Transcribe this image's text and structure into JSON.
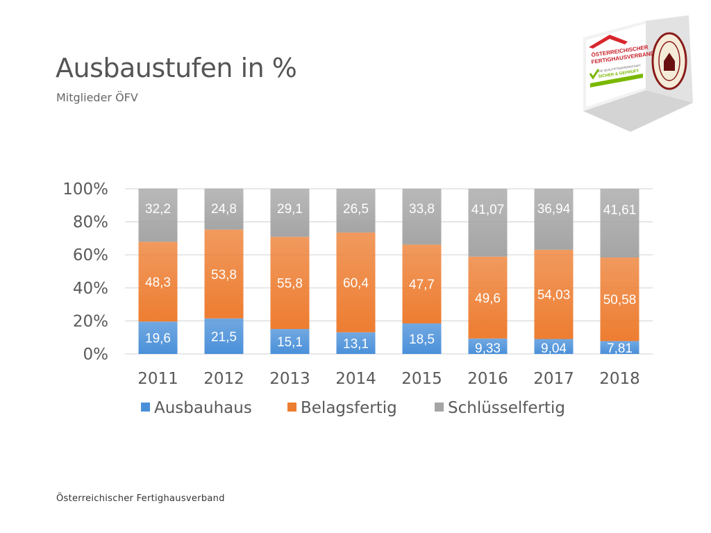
{
  "page": {
    "title": "Ausbaustufen in %",
    "subtitle": "Mitglieder ÖFV",
    "footer": "Österreichischer Fertighausverband"
  },
  "logo": {
    "line1": "ÖSTERREICHISCHER",
    "line2": "FERTIGHAUSVERBAND",
    "line3": "DIE QUALITÄTSGEMEINSCHAFT",
    "line4": "SICHER & GEPRÜFT",
    "seal": "GÜTEZEICHEN FERTIGHAUS"
  },
  "chart_data": {
    "type": "bar",
    "stacked": true,
    "percent": true,
    "categories": [
      "2011",
      "2012",
      "2013",
      "2014",
      "2015",
      "2016",
      "2017",
      "2018"
    ],
    "series": [
      {
        "name": "Ausbauhaus",
        "color": "#4a90d9",
        "values": [
          19.6,
          21.5,
          15.1,
          13.1,
          18.5,
          9.33,
          9.04,
          7.81
        ],
        "labels": [
          "19,6",
          "21,5",
          "15,1",
          "13,1",
          "18,5",
          "9,33",
          "9,04",
          "7,81"
        ]
      },
      {
        "name": "Belagsfertig",
        "color": "#ed7d31",
        "values": [
          48.3,
          53.8,
          55.8,
          60.4,
          47.7,
          49.6,
          54.03,
          50.58
        ],
        "labels": [
          "48,3",
          "53,8",
          "55,8",
          "60,4",
          "47,7",
          "49,6",
          "54,03",
          "50,58"
        ]
      },
      {
        "name": "Schlüsselfertig",
        "color": "#a5a5a5",
        "values": [
          32.2,
          24.8,
          29.1,
          26.5,
          33.8,
          41.07,
          36.94,
          41.61
        ],
        "labels": [
          "32,2",
          "24,8",
          "29,1",
          "26,5",
          "33,8",
          "41,07",
          "36,94",
          "41,61"
        ]
      }
    ],
    "y_ticks": [
      "0%",
      "20%",
      "40%",
      "60%",
      "80%",
      "100%"
    ],
    "ylim": [
      0,
      100
    ],
    "grid": true,
    "legend_position": "bottom"
  }
}
